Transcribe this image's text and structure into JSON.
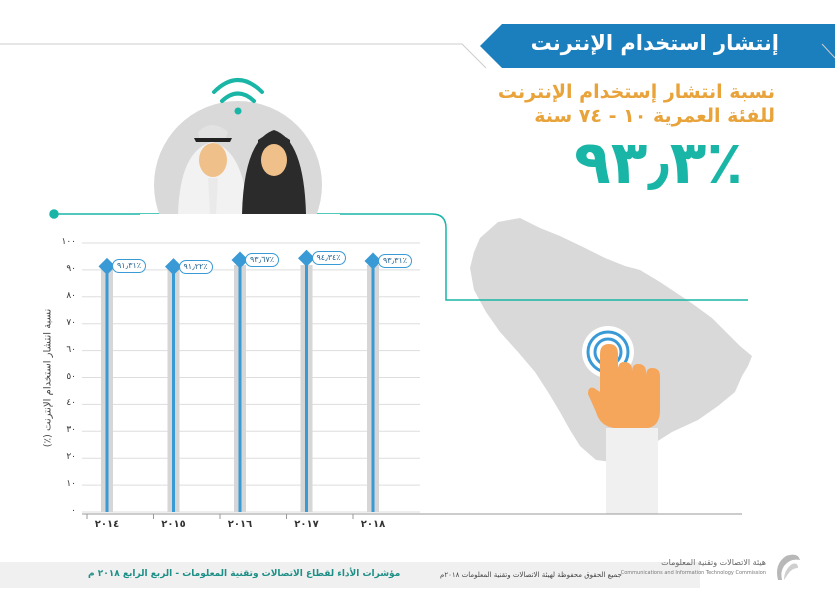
{
  "header": {
    "title": "إنتشار استخدام الإنترنت",
    "subtitle_line1": "نسبة انتشار إستخدام الإنترنت",
    "subtitle_line2": "للفئة العمرية ١٠ - ٧٤ سنة",
    "headline_value": "٪٩٣٫٣"
  },
  "colors": {
    "banner_blue": "#1b7fbd",
    "teal": "#19b5a6",
    "orange": "#e8a33a",
    "bar_gray": "#d6d6d6",
    "line_blue": "#3a9ad6",
    "map_gray": "#d9d9d9"
  },
  "chart_data": {
    "type": "bar",
    "categories": [
      "٢٠١٤",
      "٢٠١٥",
      "٢٠١٦",
      "٢٠١٧",
      "٢٠١٨"
    ],
    "values": [
      91.31,
      91.22,
      93.67,
      94.34,
      93.31
    ],
    "data_labels": [
      "٪٩١٫٣١",
      "٪٩١٫٢٢",
      "٪٩٣٫٦٧",
      "٪٩٤٫٣٤",
      "٪٩٣٫٣١"
    ],
    "ylabel": "نسبة انتشار استخدام الإنترنت (٪)",
    "ylim": [
      0,
      100
    ],
    "yticks": [
      "٠",
      "١٠",
      "٢٠",
      "٣٠",
      "٤٠",
      "٥٠",
      "٦٠",
      "٧٠",
      "٨٠",
      "٩٠",
      "١٠٠"
    ],
    "grid": true
  },
  "footer": {
    "left_text": "مؤشرات الأداء لقطاع الاتصالات وتقنية المعلومات - الربع الرابع ٢٠١٨ م",
    "middle_text": "جميع الحقوق محفوظة لهيئة الاتصالات وتقنية المعلومات ٢٠١٨م",
    "logo_text_ar": "هيئة الاتصالات وتقنية المعلومات",
    "logo_text_en": "Communications and Information Technology Commission"
  },
  "icons": [
    "wifi-icon",
    "people-illustration",
    "saudi-map-illustration",
    "touch-hand-icon",
    "citc-logo-icon"
  ]
}
